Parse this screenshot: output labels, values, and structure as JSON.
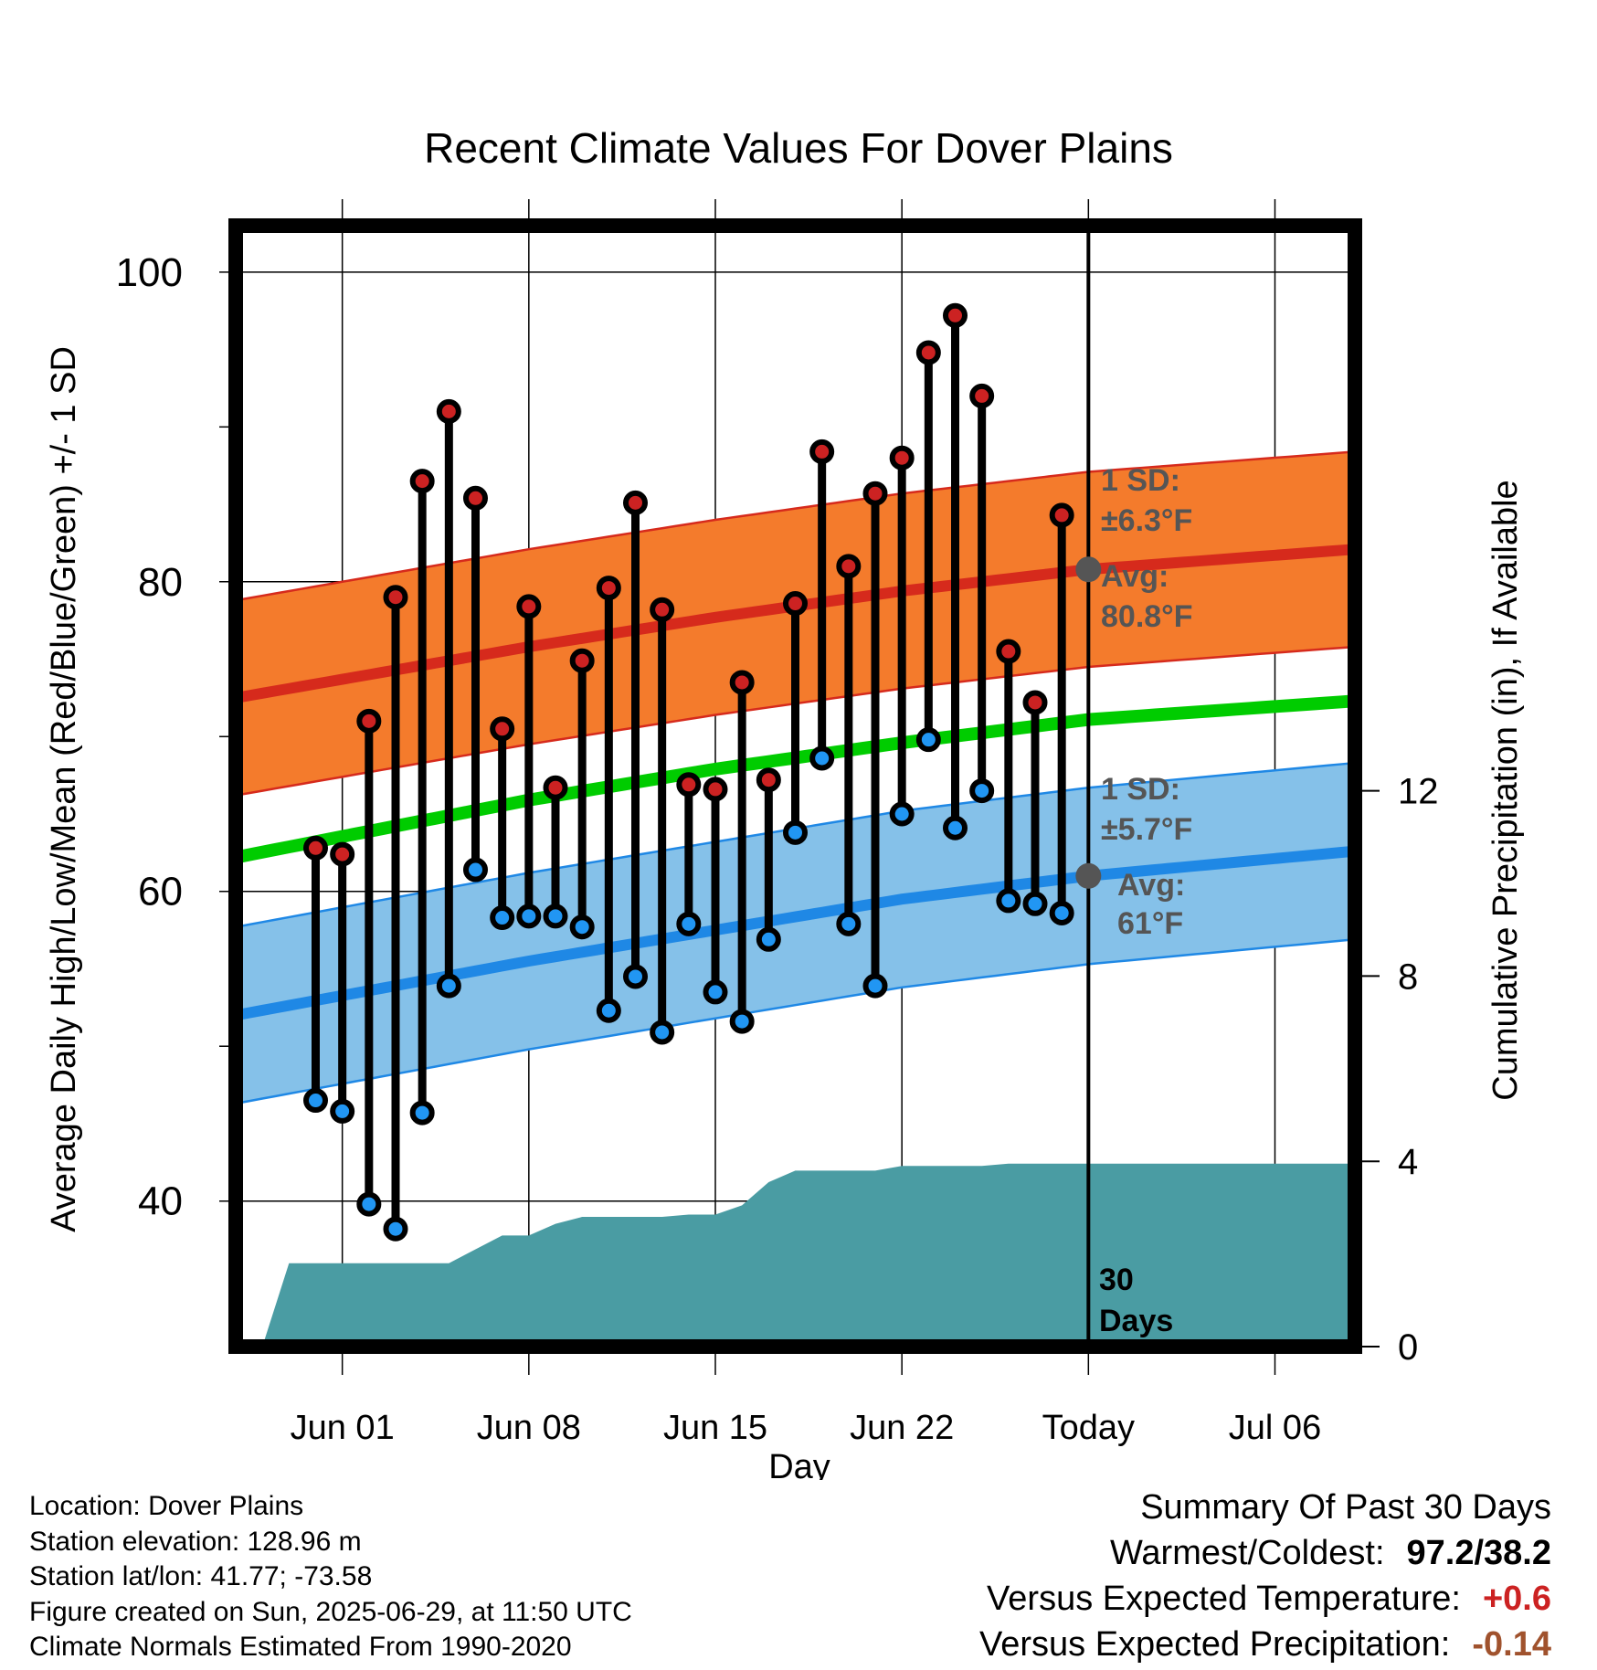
{
  "chart_data": {
    "type": "line",
    "title": "Recent Climate Values For Dover Plains",
    "xlabel": "Day",
    "ylabel": "Average Daily High/Low/Mean (Red/Blue/Green) +/- 1 SD",
    "y2label": "Cumulative Precipitation (in), If Available",
    "x_tick_labels": [
      "Jun 01",
      "Jun 08",
      "Jun 15",
      "Jun 22",
      "Today",
      "Jul 06"
    ],
    "x_tick_dates": [
      "2025-06-01",
      "2025-06-08",
      "2025-06-15",
      "2025-06-22",
      "2025-06-29",
      "2025-07-06"
    ],
    "x_range": [
      "2025-05-28",
      "2025-07-09"
    ],
    "y_ticks": [
      40,
      60,
      80,
      100
    ],
    "ylim": [
      30.6,
      103
    ],
    "y2_ticks": [
      0,
      4,
      8,
      12
    ],
    "y2lim": [
      0,
      24.2
    ],
    "today": "2025-06-29",
    "today_label": "Today",
    "window_label": "30 Days",
    "series": [
      {
        "name": "High",
        "color": "#cc2222",
        "dates": [
          "2025-05-31",
          "2025-06-01",
          "2025-06-02",
          "2025-06-03",
          "2025-06-04",
          "2025-06-05",
          "2025-06-06",
          "2025-06-07",
          "2025-06-08",
          "2025-06-09",
          "2025-06-10",
          "2025-06-11",
          "2025-06-12",
          "2025-06-13",
          "2025-06-14",
          "2025-06-15",
          "2025-06-16",
          "2025-06-17",
          "2025-06-18",
          "2025-06-19",
          "2025-06-20",
          "2025-06-21",
          "2025-06-22",
          "2025-06-23",
          "2025-06-24",
          "2025-06-25",
          "2025-06-26",
          "2025-06-27",
          "2025-06-28"
        ],
        "values": [
          62.8,
          62.4,
          71.0,
          79.0,
          86.5,
          91.0,
          85.4,
          70.5,
          78.4,
          66.7,
          74.9,
          79.6,
          85.1,
          78.2,
          66.9,
          66.6,
          73.5,
          67.2,
          78.6,
          88.4,
          81.0,
          85.7,
          88.0,
          94.8,
          97.2,
          92.0,
          75.5,
          72.2,
          84.3
        ]
      },
      {
        "name": "Low",
        "color": "#2196f3",
        "dates": [
          "2025-05-31",
          "2025-06-01",
          "2025-06-02",
          "2025-06-03",
          "2025-06-04",
          "2025-06-05",
          "2025-06-06",
          "2025-06-07",
          "2025-06-08",
          "2025-06-09",
          "2025-06-10",
          "2025-06-11",
          "2025-06-12",
          "2025-06-13",
          "2025-06-14",
          "2025-06-15",
          "2025-06-16",
          "2025-06-17",
          "2025-06-18",
          "2025-06-19",
          "2025-06-20",
          "2025-06-21",
          "2025-06-22",
          "2025-06-23",
          "2025-06-24",
          "2025-06-25",
          "2025-06-26",
          "2025-06-27",
          "2025-06-28"
        ],
        "values": [
          46.5,
          45.8,
          39.8,
          38.2,
          45.7,
          53.9,
          61.4,
          58.3,
          58.4,
          58.4,
          57.7,
          52.3,
          54.5,
          50.9,
          57.9,
          53.5,
          51.6,
          56.9,
          63.8,
          68.6,
          57.9,
          53.9,
          65.0,
          69.8,
          64.1,
          66.5,
          59.4,
          59.2,
          58.6
        ]
      },
      {
        "name": "Mean",
        "color": "#00cc00",
        "dates": [
          "2025-05-28",
          "2025-06-08",
          "2025-06-15",
          "2025-06-22",
          "2025-06-29",
          "2025-07-09"
        ],
        "values": [
          62.2,
          65.9,
          67.9,
          69.6,
          71.1,
          72.3
        ]
      }
    ],
    "bands": [
      {
        "name": "High normal",
        "avg_label": "Avg:",
        "avg_value": "80.8°F",
        "sd_label": "1 SD:",
        "sd_value": "±6.3°F",
        "fill": "#f47b2c",
        "edge": "#d62a1c",
        "dates": [
          "2025-05-28",
          "2025-06-08",
          "2025-06-15",
          "2025-06-22",
          "2025-06-29",
          "2025-07-09"
        ],
        "mean": [
          72.5,
          75.8,
          77.7,
          79.4,
          80.8,
          82.1
        ],
        "sd": 6.3
      },
      {
        "name": "Low normal",
        "avg_label": "Avg:",
        "avg_value": "61°F",
        "sd_label": "1 SD:",
        "sd_value": "±5.7°F",
        "fill": "#85c1e9",
        "edge": "#1f88e5",
        "dates": [
          "2025-05-28",
          "2025-06-08",
          "2025-06-15",
          "2025-06-22",
          "2025-06-29",
          "2025-07-09"
        ],
        "mean": [
          52.0,
          55.5,
          57.5,
          59.5,
          61.0,
          62.6
        ],
        "sd": 5.7
      }
    ],
    "precipitation": {
      "color": "#4a9ca3",
      "dates": [
        "2025-05-29",
        "2025-05-30",
        "2025-06-01",
        "2025-06-02",
        "2025-06-03",
        "2025-06-04",
        "2025-06-05",
        "2025-06-06",
        "2025-06-07",
        "2025-06-08",
        "2025-06-09",
        "2025-06-10",
        "2025-06-11",
        "2025-06-12",
        "2025-06-13",
        "2025-06-14",
        "2025-06-15",
        "2025-06-16",
        "2025-06-17",
        "2025-06-18",
        "2025-06-19",
        "2025-06-20",
        "2025-06-21",
        "2025-06-22",
        "2025-06-23",
        "2025-06-24",
        "2025-06-25",
        "2025-06-26",
        "2025-06-27",
        "2025-06-28",
        "2025-06-29",
        "2025-07-09"
      ],
      "values": [
        0.0,
        1.8,
        1.8,
        1.8,
        1.8,
        1.8,
        1.8,
        2.1,
        2.4,
        2.4,
        2.65,
        2.8,
        2.8,
        2.8,
        2.8,
        2.85,
        2.85,
        3.05,
        3.55,
        3.8,
        3.8,
        3.8,
        3.8,
        3.9,
        3.9,
        3.9,
        3.9,
        3.95,
        3.95,
        3.95,
        3.95,
        3.95
      ]
    }
  },
  "footer": {
    "location": "Location: Dover Plains",
    "elevation": "Station elevation: 128.96 m",
    "latlon": "Station lat/lon: 41.77; -73.58",
    "created": "Figure created on Sun, 2025-06-29, at 11:50 UTC",
    "normals": "Climate Normals Estimated From 1990-2020"
  },
  "summary": {
    "title": "Summary Of Past 30 Days",
    "warmest_coldest_label": "Warmest/Coldest:",
    "warmest_coldest_value": "97.2/38.2",
    "temp_label": "Versus Expected Temperature:",
    "temp_value": "+0.6",
    "temp_color": "#cc2222",
    "precip_label": "Versus Expected Precipitation:",
    "precip_value": "-0.14",
    "precip_color": "#a0522d"
  }
}
